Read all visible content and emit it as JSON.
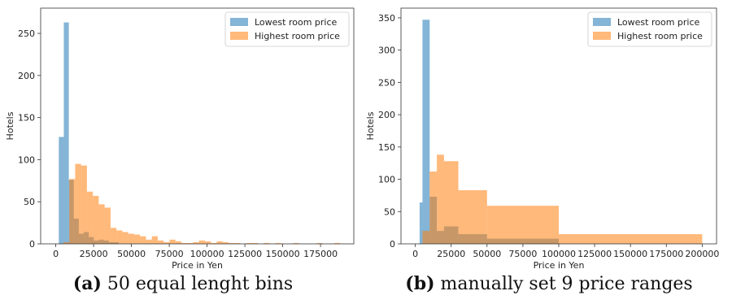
{
  "colors": {
    "lowest": "#1f77b4",
    "highest": "#ff7f0e",
    "frame": "#333333"
  },
  "chart_data": [
    {
      "type": "bar",
      "caption_label": "(a)",
      "caption_text": "50 equal lenght bins",
      "xlabel": "Price in Yen",
      "ylabel": "Hotels",
      "xlim": [
        -10000,
        197000
      ],
      "ylim": [
        0,
        280
      ],
      "xticks": [
        0,
        25000,
        50000,
        75000,
        100000,
        125000,
        150000,
        175000
      ],
      "yticks": [
        0,
        50,
        100,
        150,
        200,
        250
      ],
      "legend_position": "top-right",
      "series": [
        {
          "name": "Lowest room price",
          "color_key": "lowest",
          "bins": [
            [
              2000,
              5300,
              127
            ],
            [
              5300,
              8600,
              263
            ],
            [
              8600,
              11900,
              76
            ],
            [
              11900,
              15200,
              30
            ],
            [
              15200,
              18500,
              12
            ],
            [
              18500,
              21800,
              14
            ],
            [
              21800,
              25100,
              8
            ],
            [
              25100,
              28400,
              4
            ],
            [
              28400,
              31700,
              5
            ],
            [
              31700,
              35000,
              4
            ],
            [
              35000,
              38300,
              2
            ],
            [
              38300,
              41600,
              2
            ]
          ]
        },
        {
          "name": "Highest room price",
          "color_key": "highest",
          "bins": [
            [
              5000,
              8900,
              2
            ],
            [
              8900,
              12800,
              77
            ],
            [
              12800,
              16700,
              95
            ],
            [
              16700,
              20600,
              93
            ],
            [
              20600,
              24500,
              62
            ],
            [
              24500,
              28400,
              57
            ],
            [
              28400,
              32300,
              47
            ],
            [
              32300,
              36200,
              43
            ],
            [
              36200,
              40100,
              19
            ],
            [
              40100,
              44000,
              16
            ],
            [
              44000,
              47900,
              14
            ],
            [
              47900,
              51800,
              12
            ],
            [
              51800,
              55700,
              11
            ],
            [
              55700,
              59600,
              9
            ],
            [
              59600,
              63500,
              5
            ],
            [
              63500,
              67400,
              9
            ],
            [
              67400,
              71300,
              4
            ],
            [
              71300,
              75200,
              2
            ],
            [
              75200,
              79100,
              5
            ],
            [
              79100,
              83000,
              3
            ],
            [
              83000,
              86900,
              1
            ],
            [
              86900,
              90800,
              1
            ],
            [
              90800,
              94700,
              2
            ],
            [
              94700,
              98600,
              4
            ],
            [
              98600,
              102500,
              3
            ],
            [
              102500,
              106400,
              1
            ],
            [
              106400,
              110300,
              3
            ],
            [
              110300,
              114200,
              2
            ],
            [
              114200,
              118100,
              1
            ],
            [
              118100,
              122000,
              1
            ],
            [
              125800,
              129700,
              1
            ],
            [
              129700,
              133600,
              1
            ],
            [
              137400,
              141300,
              1
            ],
            [
              145200,
              149100,
              1
            ],
            [
              156900,
              160800,
              1
            ],
            [
              172500,
              176400,
              1
            ],
            [
              184200,
              188100,
              1
            ]
          ]
        }
      ]
    },
    {
      "type": "bar",
      "caption_label": "(b)",
      "caption_text": "manually set 9 price ranges",
      "xlabel": "Price in Yen",
      "ylabel": "Hotels",
      "xlim": [
        -10000,
        210000
      ],
      "ylim": [
        0,
        365
      ],
      "xticks": [
        0,
        25000,
        50000,
        75000,
        100000,
        125000,
        150000,
        175000,
        200000
      ],
      "yticks": [
        0,
        50,
        100,
        150,
        200,
        250,
        300,
        350
      ],
      "legend_position": "top-right",
      "series": [
        {
          "name": "Lowest room price",
          "color_key": "lowest",
          "bins": [
            [
              3000,
              5000,
              64
            ],
            [
              5000,
              10000,
              347
            ],
            [
              10000,
              15000,
              73
            ],
            [
              15000,
              20000,
              20
            ],
            [
              20000,
              30000,
              27
            ],
            [
              30000,
              50000,
              15
            ],
            [
              50000,
              100000,
              8
            ]
          ]
        },
        {
          "name": "Highest room price",
          "color_key": "highest",
          "bins": [
            [
              5000,
              10000,
              20
            ],
            [
              10000,
              15000,
              112
            ],
            [
              15000,
              20000,
              138
            ],
            [
              20000,
              30000,
              128
            ],
            [
              30000,
              50000,
              83
            ],
            [
              50000,
              100000,
              59
            ],
            [
              100000,
              200000,
              15
            ]
          ]
        }
      ]
    }
  ]
}
